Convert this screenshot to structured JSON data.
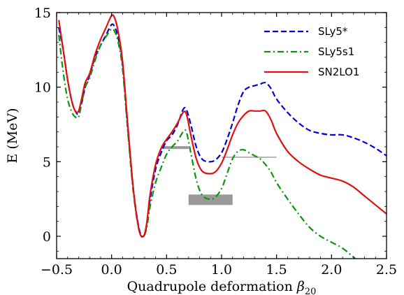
{
  "chart_data": {
    "type": "line",
    "xlabel_main": "Quadrupole deformation ",
    "xlabel_symbol": "β",
    "xlabel_sub": "20",
    "ylabel": "E (MeV)",
    "xlim": [
      -0.5,
      2.5
    ],
    "ylim": [
      -1.5,
      15
    ],
    "xticks": [
      -0.5,
      0.0,
      0.5,
      1.0,
      1.5,
      2.0,
      2.5
    ],
    "xtick_labels": [
      "−0.5",
      "0.0",
      "0.5",
      "1.0",
      "1.5",
      "2.0",
      "2.5"
    ],
    "yticks": [
      0,
      5,
      10,
      15
    ],
    "ytick_labels": [
      "0",
      "5",
      "10",
      "15"
    ],
    "grid": false,
    "legend_position": "top-right",
    "series": [
      {
        "name": "SLy5*",
        "color": "#0000dd",
        "style": "dashed",
        "x": [
          -0.48,
          -0.44,
          -0.4,
          -0.36,
          -0.33,
          -0.3,
          -0.27,
          -0.24,
          -0.2,
          -0.15,
          -0.1,
          -0.05,
          0.0,
          0.03,
          0.06,
          0.1,
          0.15,
          0.2,
          0.25,
          0.29,
          0.32,
          0.35,
          0.4,
          0.45,
          0.5,
          0.55,
          0.6,
          0.65,
          0.68,
          0.72,
          0.77,
          0.82,
          0.88,
          0.94,
          1.0,
          1.05,
          1.1,
          1.15,
          1.2,
          1.25,
          1.3,
          1.35,
          1.4,
          1.45,
          1.5,
          1.6,
          1.7,
          1.8,
          1.9,
          2.0,
          2.1,
          2.2,
          2.3,
          2.4,
          2.5
        ],
        "y": [
          14.0,
          12.5,
          10.5,
          9.0,
          8.4,
          8.2,
          9.0,
          10.0,
          10.8,
          12.0,
          12.8,
          13.5,
          14.2,
          14.0,
          13.3,
          11.5,
          7.0,
          3.0,
          0.5,
          0.0,
          0.8,
          2.5,
          4.5,
          5.6,
          6.4,
          6.8,
          7.5,
          8.5,
          8.5,
          7.5,
          6.0,
          5.2,
          5.0,
          5.1,
          5.6,
          6.5,
          7.6,
          8.8,
          9.7,
          10.0,
          10.1,
          10.2,
          10.3,
          9.9,
          9.2,
          8.3,
          7.6,
          7.1,
          6.9,
          6.8,
          6.8,
          6.6,
          6.3,
          5.9,
          5.4
        ]
      },
      {
        "name": "SLy5s1",
        "color": "#109410",
        "style": "dashdot",
        "x": [
          -0.48,
          -0.44,
          -0.4,
          -0.36,
          -0.33,
          -0.3,
          -0.27,
          -0.24,
          -0.2,
          -0.15,
          -0.1,
          -0.05,
          0.0,
          0.03,
          0.06,
          0.1,
          0.15,
          0.2,
          0.25,
          0.29,
          0.32,
          0.35,
          0.4,
          0.45,
          0.5,
          0.55,
          0.6,
          0.65,
          0.68,
          0.72,
          0.77,
          0.82,
          0.88,
          0.94,
          1.0,
          1.05,
          1.1,
          1.15,
          1.2,
          1.25,
          1.3,
          1.35,
          1.4,
          1.45,
          1.5,
          1.6,
          1.7,
          1.8,
          1.9,
          2.0,
          2.1,
          2.2,
          2.23
        ],
        "y": [
          13.5,
          11.0,
          9.2,
          8.3,
          8.0,
          8.0,
          9.0,
          10.0,
          10.6,
          11.8,
          12.8,
          13.4,
          13.9,
          13.7,
          13.0,
          11.2,
          6.8,
          2.8,
          0.4,
          0.0,
          0.6,
          2.0,
          3.6,
          4.6,
          5.5,
          6.0,
          6.4,
          7.0,
          7.0,
          5.6,
          3.8,
          2.8,
          2.5,
          2.6,
          3.2,
          4.2,
          5.2,
          5.7,
          5.8,
          5.6,
          5.4,
          5.2,
          4.8,
          4.3,
          3.6,
          2.5,
          1.5,
          0.6,
          0.0,
          -0.4,
          -0.8,
          -1.4,
          -1.6
        ]
      },
      {
        "name": "SN2LO1",
        "color": "#e01010",
        "style": "solid",
        "x": [
          -0.48,
          -0.44,
          -0.4,
          -0.36,
          -0.33,
          -0.3,
          -0.27,
          -0.24,
          -0.2,
          -0.15,
          -0.1,
          -0.05,
          0.0,
          0.03,
          0.06,
          0.1,
          0.15,
          0.2,
          0.25,
          0.29,
          0.32,
          0.35,
          0.4,
          0.45,
          0.5,
          0.55,
          0.6,
          0.65,
          0.68,
          0.72,
          0.77,
          0.82,
          0.88,
          0.94,
          1.0,
          1.05,
          1.1,
          1.15,
          1.2,
          1.25,
          1.3,
          1.35,
          1.4,
          1.45,
          1.5,
          1.6,
          1.7,
          1.8,
          1.9,
          2.0,
          2.1,
          2.2,
          2.3,
          2.4,
          2.5
        ],
        "y": [
          14.5,
          12.5,
          10.5,
          9.0,
          8.4,
          8.4,
          9.3,
          10.3,
          10.9,
          12.2,
          13.2,
          14.0,
          14.8,
          14.6,
          13.7,
          11.7,
          7.2,
          3.0,
          0.4,
          0.0,
          0.9,
          2.8,
          4.8,
          5.9,
          6.5,
          7.0,
          7.6,
          8.3,
          8.2,
          6.8,
          5.2,
          4.4,
          4.2,
          4.3,
          4.9,
          5.8,
          6.8,
          7.6,
          8.1,
          8.4,
          8.4,
          8.4,
          8.4,
          7.8,
          6.9,
          5.7,
          5.0,
          4.5,
          4.1,
          3.9,
          3.7,
          3.3,
          2.7,
          2.1,
          1.5
        ]
      }
    ],
    "annotations": [
      {
        "type": "line",
        "color": "#999999",
        "x": [
          0.45,
          0.7
        ],
        "y": [
          5.95,
          5.95
        ]
      },
      {
        "type": "line",
        "color": "#999999",
        "x": [
          1.0,
          1.5
        ],
        "y": [
          5.3,
          5.3
        ]
      },
      {
        "type": "band",
        "color": "#999999",
        "x": [
          0.7,
          1.1
        ],
        "y": [
          2.1,
          2.8
        ]
      }
    ]
  }
}
